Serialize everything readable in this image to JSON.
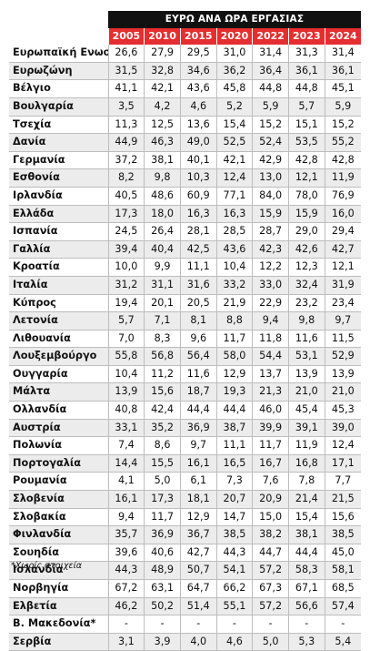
{
  "title": "ΕΥΡΩ ΑΝΑ ΩΡΑ ΕΡΓΑΣΙΑΣ",
  "years": [
    "2005",
    "2010",
    "2015",
    "2020",
    "2022",
    "2023",
    "2024"
  ],
  "rows": [
    {
      "country": "Ευρωπαϊκή Ενωση",
      "values": [
        "26,6",
        "27,9",
        "29,5",
        "31,0",
        "31,4",
        "31,3",
        "31,4"
      ]
    },
    {
      "country": "Ευρωζώνη",
      "values": [
        "31,5",
        "32,8",
        "34,6",
        "36,2",
        "36,4",
        "36,1",
        "36,1"
      ]
    },
    {
      "country": "Βέλγιο",
      "values": [
        "41,1",
        "42,1",
        "43,6",
        "45,8",
        "44,8",
        "44,8",
        "45,1"
      ]
    },
    {
      "country": "Βουλγαρία",
      "values": [
        "3,5",
        "4,2",
        "4,6",
        "5,2",
        "5,9",
        "5,7",
        "5,9"
      ]
    },
    {
      "country": "Τσεχία",
      "values": [
        "11,3",
        "12,5",
        "13,6",
        "15,4",
        "15,2",
        "15,1",
        "15,2"
      ]
    },
    {
      "country": "Δανία",
      "values": [
        "44,9",
        "46,3",
        "49,0",
        "52,5",
        "52,4",
        "53,5",
        "55,2"
      ]
    },
    {
      "country": "Γερμανία",
      "values": [
        "37,2",
        "38,1",
        "40,1",
        "42,1",
        "42,9",
        "42,8",
        "42,8"
      ]
    },
    {
      "country": "Εσθονία",
      "values": [
        "8,2",
        "9,8",
        "10,3",
        "12,4",
        "13,0",
        "12,1",
        "11,9"
      ]
    },
    {
      "country": "Ιρλανδία",
      "values": [
        "40,5",
        "48,6",
        "60,9",
        "77,1",
        "84,0",
        "78,0",
        "76,9"
      ]
    },
    {
      "country": "Ελλάδα",
      "values": [
        "17,3",
        "18,0",
        "16,3",
        "16,3",
        "15,9",
        "15,9",
        "16,0"
      ]
    },
    {
      "country": "Ισπανία",
      "values": [
        "24,5",
        "26,4",
        "28,1",
        "28,5",
        "28,7",
        "29,0",
        "29,4"
      ]
    },
    {
      "country": "Γαλλία",
      "values": [
        "39,4",
        "40,4",
        "42,5",
        "43,6",
        "42,3",
        "42,6",
        "42,7"
      ]
    },
    {
      "country": "Κροατία",
      "values": [
        "10,0",
        "9,9",
        "11,1",
        "10,4",
        "12,2",
        "12,3",
        "12,1"
      ]
    },
    {
      "country": "Ιταλία",
      "values": [
        "31,2",
        "31,1",
        "31,6",
        "33,2",
        "33,0",
        "32,4",
        "31,9"
      ]
    },
    {
      "country": "Κύπρος",
      "values": [
        "19,4",
        "20,1",
        "20,5",
        "21,9",
        "22,9",
        "23,2",
        "23,4"
      ]
    },
    {
      "country": "Λετονία",
      "values": [
        "5,7",
        "7,1",
        "8,1",
        "8,8",
        "9,4",
        "9,8",
        "9,7"
      ]
    },
    {
      "country": "Λιθουανία",
      "values": [
        "7,0",
        "8,3",
        "9,6",
        "11,7",
        "11,8",
        "11,6",
        "11,5"
      ]
    },
    {
      "country": "Λουξεμβούργο",
      "values": [
        "55,8",
        "56,8",
        "56,4",
        "58,0",
        "54,4",
        "53,1",
        "52,9"
      ]
    },
    {
      "country": "Ουγγαρία",
      "values": [
        "10,4",
        "11,2",
        "11,6",
        "12,9",
        "13,7",
        "13,9",
        "13,9"
      ]
    },
    {
      "country": "Μάλτα",
      "values": [
        "13,9",
        "15,6",
        "18,7",
        "19,3",
        "21,3",
        "21,0",
        "21,0"
      ]
    },
    {
      "country": "Ολλανδία",
      "values": [
        "40,8",
        "42,4",
        "44,4",
        "44,4",
        "46,0",
        "45,4",
        "45,3"
      ]
    },
    {
      "country": "Αυστρία",
      "values": [
        "33,1",
        "35,2",
        "36,9",
        "38,7",
        "39,9",
        "39,1",
        "39,0"
      ]
    },
    {
      "country": "Πολωνία",
      "values": [
        "7,4",
        "8,6",
        "9,7",
        "11,1",
        "11,7",
        "11,9",
        "12,4"
      ]
    },
    {
      "country": "Πορτογαλία",
      "values": [
        "14,4",
        "15,5",
        "16,1",
        "16,5",
        "16,7",
        "16,8",
        "17,1"
      ]
    },
    {
      "country": "Ρουμανία",
      "values": [
        "4,1",
        "5,0",
        "6,1",
        "7,3",
        "7,6",
        "7,8",
        "7,7"
      ]
    },
    {
      "country": "Σλοβενία",
      "values": [
        "16,1",
        "17,3",
        "18,1",
        "20,7",
        "20,9",
        "21,4",
        "21,5"
      ]
    },
    {
      "country": "Σλοβακία",
      "values": [
        "9,4",
        "11,7",
        "12,9",
        "14,7",
        "15,0",
        "15,4",
        "15,6"
      ]
    },
    {
      "country": "Φινλανδία",
      "values": [
        "35,7",
        "36,9",
        "36,7",
        "38,5",
        "38,2",
        "38,1",
        "38,5"
      ]
    },
    {
      "country": "Σουηδία",
      "values": [
        "39,6",
        "40,6",
        "42,7",
        "44,3",
        "44,7",
        "44,4",
        "45,0"
      ]
    },
    {
      "country": "Ισλανδία",
      "values": [
        "44,3",
        "48,9",
        "50,7",
        "54,1",
        "57,2",
        "58,3",
        "58,1"
      ]
    },
    {
      "country": "Νορβηγία",
      "values": [
        "67,2",
        "63,1",
        "64,7",
        "66,2",
        "67,3",
        "67,1",
        "68,5"
      ]
    },
    {
      "country": "Ελβετία",
      "values": [
        "46,2",
        "50,2",
        "51,4",
        "55,1",
        "57,2",
        "56,6",
        "57,4"
      ]
    },
    {
      "country": "Β. Μακεδονία*",
      "values": [
        "-",
        "-",
        "-",
        "-",
        "-",
        "-",
        "-"
      ]
    },
    {
      "country": "Σερβία",
      "values": [
        "3,1",
        "3,9",
        "4,0",
        "4,6",
        "5,0",
        "5,3",
        "5,4"
      ]
    }
  ],
  "footnote": "*Χωρίς στοιχεία"
}
